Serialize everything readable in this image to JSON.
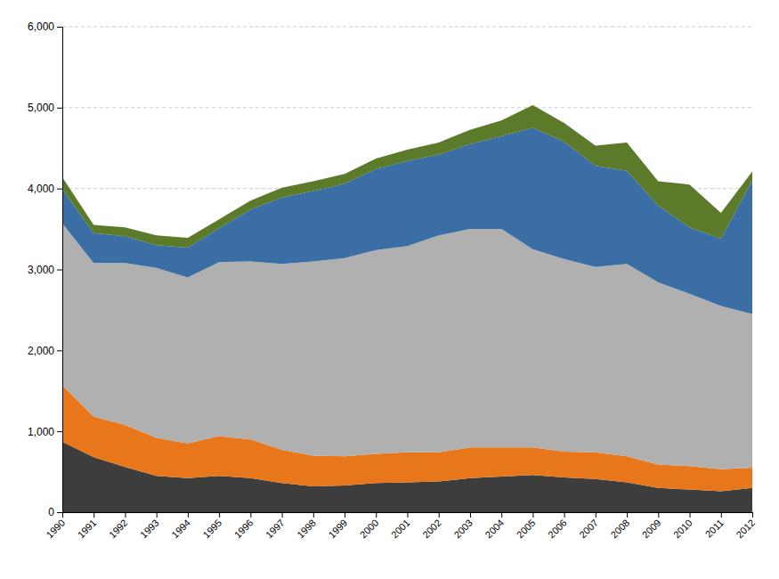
{
  "chart_data": {
    "type": "area",
    "stacked": true,
    "grid": true,
    "x": [
      1990,
      1991,
      1992,
      1993,
      1994,
      1995,
      1996,
      1997,
      1998,
      1999,
      2000,
      2001,
      2002,
      2003,
      2004,
      2005,
      2006,
      2007,
      2008,
      2009,
      2010,
      2011,
      2012
    ],
    "xlim": [
      1990,
      2012
    ],
    "xticks": [
      1990,
      1991,
      1992,
      1993,
      1994,
      1995,
      1996,
      1997,
      1998,
      1999,
      2000,
      2001,
      2002,
      2003,
      2004,
      2005,
      2006,
      2007,
      2008,
      2009,
      2010,
      2011,
      2012
    ],
    "ylim": [
      0,
      6000
    ],
    "yticks": [
      0,
      {
        "value": 1000,
        "label": "1,000"
      },
      {
        "value": 2000,
        "label": "2,000"
      },
      {
        "value": 3000,
        "label": "3,000"
      },
      {
        "value": 4000,
        "label": "4,000"
      },
      {
        "value": 5000,
        "label": "5,000"
      },
      {
        "value": 6000,
        "label": "6,000"
      }
    ],
    "series": [
      {
        "color": "#3D3D3D",
        "values": [
          870,
          680,
          560,
          450,
          420,
          450,
          420,
          360,
          320,
          330,
          360,
          370,
          380,
          420,
          440,
          460,
          430,
          410,
          370,
          300,
          280,
          260,
          300
        ]
      },
      {
        "color": "#E8761A",
        "values": [
          700,
          500,
          520,
          470,
          430,
          490,
          480,
          410,
          380,
          360,
          360,
          370,
          360,
          380,
          360,
          340,
          320,
          330,
          320,
          290,
          290,
          270,
          250
        ]
      },
      {
        "color": "#B0B0B0",
        "values": [
          2000,
          1900,
          2000,
          2100,
          2050,
          2150,
          2200,
          2300,
          2400,
          2450,
          2520,
          2550,
          2680,
          2700,
          2700,
          2450,
          2380,
          2290,
          2380,
          2250,
          2130,
          2020,
          1900
        ]
      },
      {
        "color": "#3A6EA5",
        "values": [
          420,
          370,
          330,
          280,
          370,
          420,
          640,
          820,
          870,
          920,
          1000,
          1050,
          1000,
          1050,
          1150,
          1500,
          1450,
          1250,
          1150,
          950,
          820,
          830,
          1650
        ]
      },
      {
        "color": "#5B7A2A",
        "values": [
          150,
          100,
          110,
          120,
          120,
          110,
          110,
          120,
          120,
          120,
          130,
          140,
          150,
          175,
          190,
          280,
          230,
          250,
          350,
          300,
          530,
          320,
          110
        ]
      }
    ]
  }
}
